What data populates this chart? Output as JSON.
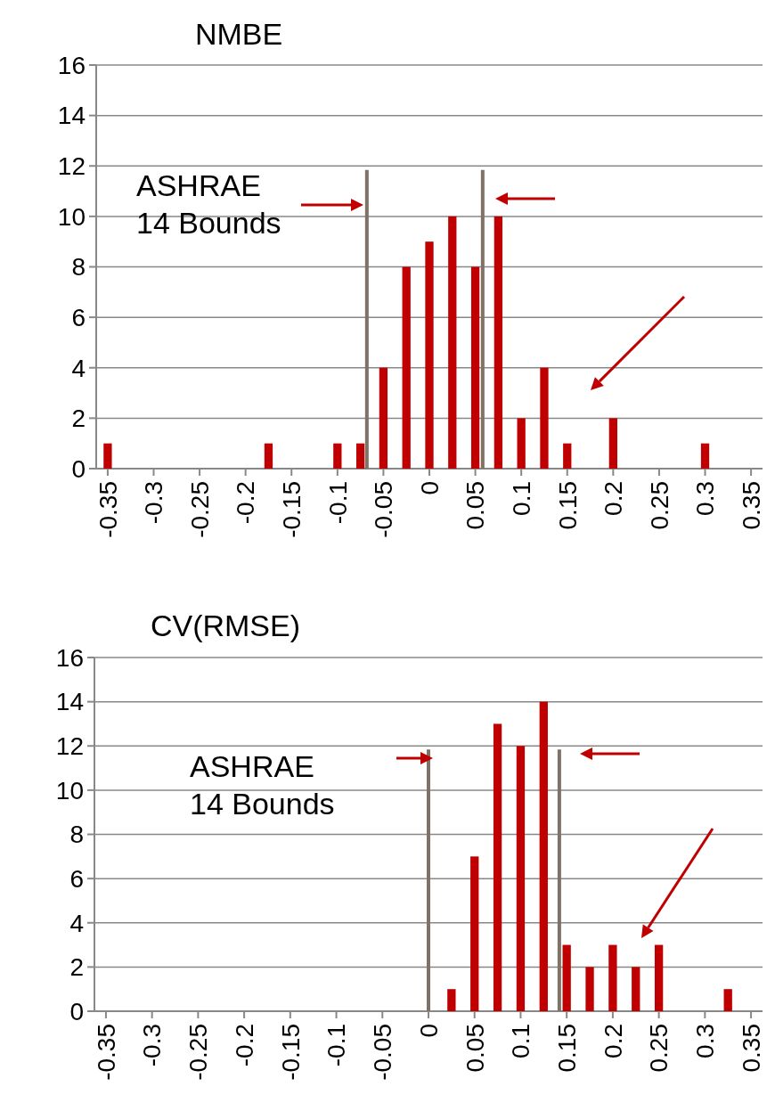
{
  "chart_data": [
    {
      "type": "bar",
      "title": "NMBE",
      "color": "#c00000",
      "x": [
        -0.35,
        -0.175,
        -0.1,
        -0.075,
        -0.05,
        -0.025,
        0,
        0.025,
        0.05,
        0.075,
        0.1,
        0.125,
        0.15,
        0.2,
        0.3
      ],
      "values": [
        1,
        1,
        1,
        1,
        4,
        8,
        9,
        10,
        8,
        10,
        2,
        4,
        1,
        2,
        1
      ],
      "xlim": [
        -0.3625,
        0.3625
      ],
      "xticks": [
        -0.35,
        -0.3,
        -0.25,
        -0.2,
        -0.15,
        -0.1,
        -0.05,
        0,
        0.05,
        0.1,
        0.15,
        0.2,
        0.25,
        0.3,
        0.35
      ],
      "ylim": [
        0,
        16
      ],
      "yticks": [
        0,
        2,
        4,
        6,
        8,
        10,
        12,
        14,
        16
      ],
      "grid": "y",
      "ref_lines": [
        {
          "axis": "x",
          "value": -0.068,
          "color": "#7f7266"
        },
        {
          "axis": "x",
          "value": 0.058,
          "color": "#7f7266"
        }
      ],
      "annotations": [
        "ASHRAE\n14 Bounds"
      ]
    },
    {
      "type": "bar",
      "title": "CV(RMSE)",
      "color": "#c00000",
      "x": [
        0.025,
        0.05,
        0.075,
        0.1,
        0.125,
        0.15,
        0.175,
        0.2,
        0.225,
        0.25,
        0.325
      ],
      "values": [
        1,
        7,
        13,
        12,
        14,
        3,
        2,
        3,
        2,
        3,
        1
      ],
      "xlim": [
        -0.3625,
        0.3625
      ],
      "xticks": [
        -0.35,
        -0.3,
        -0.25,
        -0.2,
        -0.15,
        -0.1,
        -0.05,
        0,
        0.05,
        0.1,
        0.15,
        0.2,
        0.25,
        0.3,
        0.35
      ],
      "ylim": [
        0,
        16
      ],
      "yticks": [
        0,
        2,
        4,
        6,
        8,
        10,
        12,
        14,
        16
      ],
      "grid": "y",
      "ref_lines": [
        {
          "axis": "x",
          "value": 0,
          "color": "#7f7266"
        },
        {
          "axis": "x",
          "value": 0.142,
          "color": "#7f7266"
        }
      ],
      "annotations": [
        "ASHRAE\n14 Bounds"
      ]
    }
  ]
}
